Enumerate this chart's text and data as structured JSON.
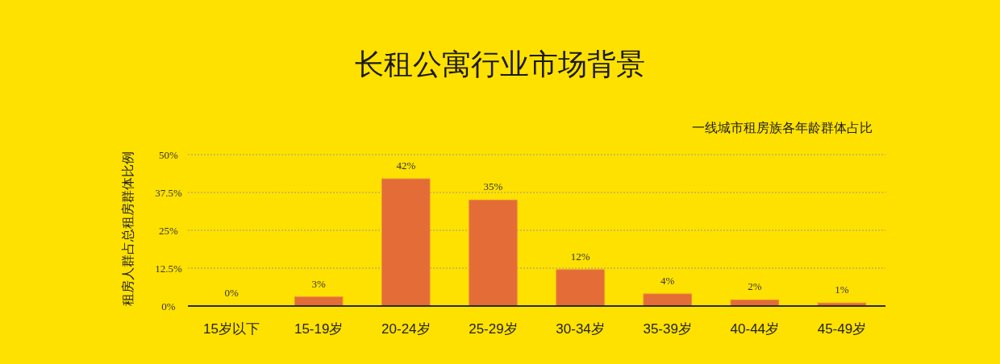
{
  "chart_data": {
    "type": "bar",
    "title": "长租公寓行业市场背景",
    "subtitle": "一线城市租房族各年龄群体占比",
    "ylabel": "租房人群占总租房群体比例",
    "categories": [
      "15岁以下",
      "15-19岁",
      "20-24岁",
      "25-29岁",
      "30-34岁",
      "35-39岁",
      "40-44岁",
      "45-49岁"
    ],
    "values": [
      0,
      3,
      42,
      35,
      12,
      4,
      2,
      1
    ],
    "value_labels": [
      "0%",
      "3%",
      "42%",
      "35%",
      "12%",
      "4%",
      "2%",
      "1%"
    ],
    "color": "#e36c37",
    "ylim": [
      0,
      50
    ],
    "yticks": [
      {
        "value": 0,
        "label": "0%"
      },
      {
        "value": 12.5,
        "label": "12.5%"
      },
      {
        "value": 25,
        "label": "25%"
      },
      {
        "value": 37.5,
        "label": "37.5%"
      },
      {
        "value": 50,
        "label": "50%"
      }
    ],
    "grid": "y"
  }
}
